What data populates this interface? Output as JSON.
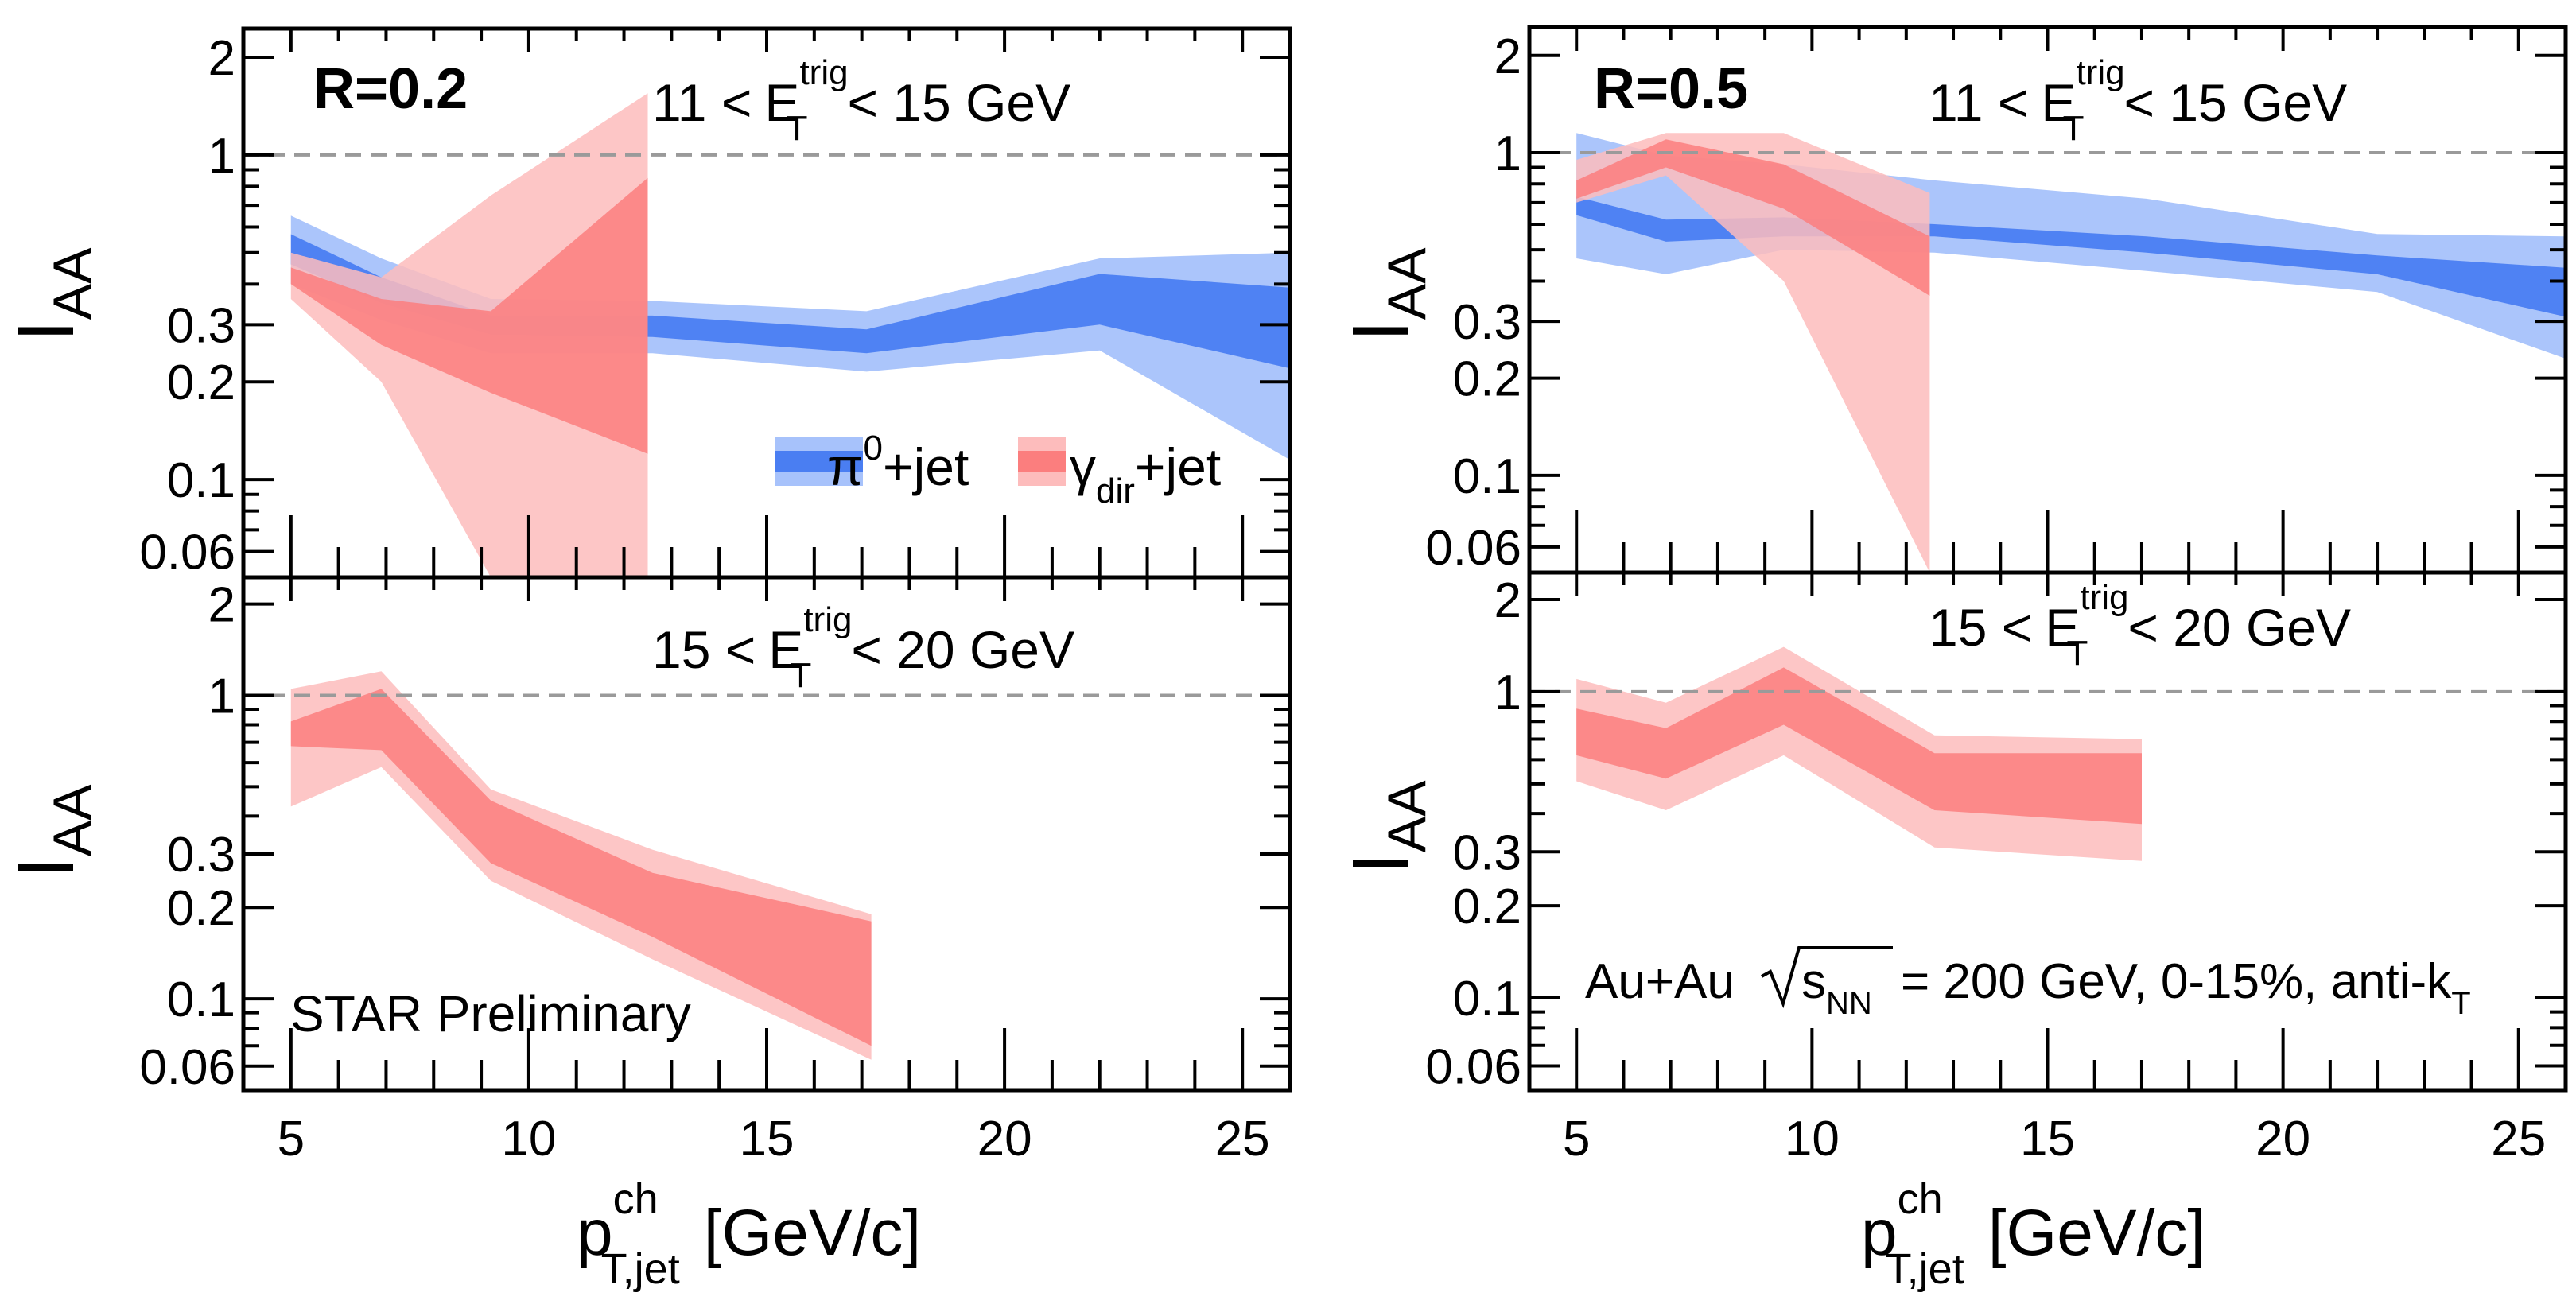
{
  "chart_data": {
    "type": "area",
    "y_scale": "log",
    "ylim": [
      0.05,
      2.45
    ],
    "xlim": [
      4.0,
      26.0
    ],
    "x_ticks": [
      5,
      10,
      15,
      20,
      25
    ],
    "x_tick_labels": [
      "5",
      "10",
      "15",
      "20",
      "25"
    ],
    "y_ticks": [
      0.06,
      0.1,
      0.2,
      0.3,
      1,
      2
    ],
    "y_tick_labels": [
      "0.06",
      "0.1",
      "0.2",
      "0.3",
      "1",
      "2"
    ],
    "ylabel_main": "I",
    "ylabel_sub": "AA",
    "xlabel_main": "p",
    "xlabel_sup": "ch",
    "xlabel_sub": "T,jet",
    "xlabel_unit": "[GeV/c]",
    "reference_line": 1,
    "colors": {
      "pi0_outer": "#a7c2fb",
      "pi0_inner": "#4a7ef2",
      "gamma_outer": "#fdbcbc",
      "gamma_inner": "#fb7e7e"
    },
    "legend": {
      "position": "bottom-right",
      "pi0": {
        "symbol": "π",
        "sup": "0",
        "suffix": "+jet"
      },
      "gamma": {
        "symbol": "γ",
        "sub": "dir",
        "suffix": "+jet"
      }
    },
    "annotations": {
      "preliminary": "STAR Preliminary",
      "system_prefix": "Au+Au",
      "system_s": "s",
      "system_sub": "NN",
      "system_suffix": "= 200 GeV, 0-15%, anti-k",
      "system_k_sub": "T"
    },
    "panels": [
      {
        "id": "top-left",
        "radius_label": "R=0.2",
        "trigger": {
          "lo": "11 <",
          "E": "E",
          "sup": "trig",
          "sub": "T",
          "hi": "< 15 GeV"
        },
        "series": [
          {
            "name": "π0+jet",
            "x": [
              5,
              6.9,
              9.2,
              12.6,
              17.1,
              22.0,
              26.0
            ],
            "sys_low": [
              0.4,
              0.31,
              0.245,
              0.245,
              0.215,
              0.25,
              0.115
            ],
            "sys_high": [
              0.65,
              0.48,
              0.36,
              0.355,
              0.33,
              0.48,
              0.5
            ],
            "stat_low": [
              0.46,
              0.35,
              0.28,
              0.275,
              0.245,
              0.3,
              0.22
            ],
            "stat_high": [
              0.57,
              0.42,
              0.32,
              0.32,
              0.29,
              0.43,
              0.39
            ]
          },
          {
            "name": "γdir+jet",
            "x": [
              5,
              6.9,
              9.2,
              12.5
            ],
            "sys_low": [
              0.36,
              0.2,
              0.05,
              0.05
            ],
            "sys_high": [
              0.5,
              0.42,
              0.75,
              1.55
            ],
            "stat_low": [
              0.4,
              0.26,
              0.185,
              0.12
            ],
            "stat_high": [
              0.45,
              0.36,
              0.33,
              0.85
            ]
          }
        ]
      },
      {
        "id": "top-right",
        "radius_label": "R=0.5",
        "trigger": {
          "lo": "11 <",
          "E": "E",
          "sup": "trig",
          "sub": "T",
          "hi": "< 15 GeV"
        },
        "series": [
          {
            "name": "π0+jet",
            "x": [
              5,
              6.9,
              9.4,
              12.6,
              17.1,
              22.0,
              26.0
            ],
            "sys_low": [
              0.47,
              0.42,
              0.5,
              0.49,
              0.43,
              0.37,
              0.23
            ],
            "sys_high": [
              1.15,
              0.98,
              0.92,
              0.82,
              0.72,
              0.56,
              0.55
            ],
            "stat_low": [
              0.64,
              0.53,
              0.55,
              0.55,
              0.49,
              0.42,
              0.31
            ],
            "stat_high": [
              0.73,
              0.62,
              0.63,
              0.6,
              0.55,
              0.48,
              0.44
            ]
          },
          {
            "name": "γdir+jet",
            "x": [
              5,
              6.9,
              9.4,
              12.5
            ],
            "sys_low": [
              0.7,
              0.85,
              0.4,
              0.05
            ],
            "sys_high": [
              0.95,
              1.15,
              1.15,
              0.75
            ],
            "stat_low": [
              0.72,
              0.9,
              0.67,
              0.36
            ],
            "stat_high": [
              0.82,
              1.1,
              0.92,
              0.55
            ]
          }
        ]
      },
      {
        "id": "bottom-left",
        "radius_label": "",
        "trigger": {
          "lo": "15 <",
          "E": "E",
          "sup": "trig",
          "sub": "T",
          "hi": "< 20 GeV"
        },
        "series": [
          {
            "name": "γdir+jet",
            "x": [
              5,
              6.9,
              9.2,
              12.6,
              17.2
            ],
            "sys_low": [
              0.43,
              0.58,
              0.245,
              0.135,
              0.063
            ],
            "sys_high": [
              1.05,
              1.2,
              0.49,
              0.31,
              0.19
            ],
            "stat_low": [
              0.68,
              0.66,
              0.28,
              0.16,
              0.07
            ],
            "stat_high": [
              0.82,
              1.05,
              0.45,
              0.26,
              0.18
            ]
          }
        ]
      },
      {
        "id": "bottom-right",
        "radius_label": "",
        "trigger": {
          "lo": "15 <",
          "E": "E",
          "sup": "trig",
          "sub": "T",
          "hi": "< 20 GeV"
        },
        "series": [
          {
            "name": "γdir+jet",
            "x": [
              5,
              6.9,
              9.4,
              12.6,
              17.0
            ],
            "sys_low": [
              0.51,
              0.41,
              0.62,
              0.31,
              0.28
            ],
            "sys_high": [
              1.1,
              0.92,
              1.4,
              0.72,
              0.7
            ],
            "stat_low": [
              0.62,
              0.52,
              0.78,
              0.41,
              0.37
            ],
            "stat_high": [
              0.88,
              0.76,
              1.2,
              0.63,
              0.63
            ]
          }
        ]
      }
    ]
  }
}
